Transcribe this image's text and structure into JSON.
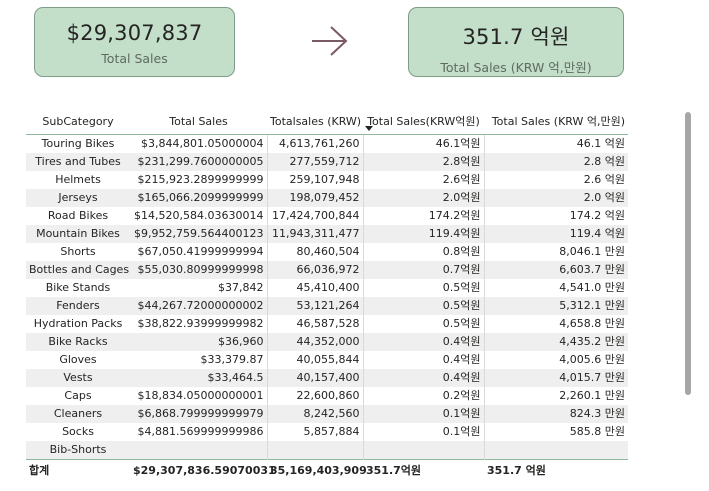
{
  "cards": {
    "total_sales": {
      "value": "$29,307,837",
      "label": "Total Sales"
    },
    "krw_sales": {
      "value": "351.7 억원",
      "label": "Total Sales (KRW 억,만원)"
    }
  },
  "table": {
    "headers": [
      "SubCategory",
      "Total Sales",
      "Totalsales (KRW)",
      "Total Sales(KRW억원)",
      "Total Sales (KRW 억,만원)"
    ],
    "rows": [
      [
        "Touring Bikes",
        "$3,844,801.05000004",
        "4,613,761,260",
        "46.1억원",
        "46.1 억원"
      ],
      [
        "Tires and Tubes",
        "$231,299.7600000005",
        "277,559,712",
        "2.8억원",
        "2.8 억원"
      ],
      [
        "Helmets",
        "$215,923.2899999999",
        "259,107,948",
        "2.6억원",
        "2.6 억원"
      ],
      [
        "Jerseys",
        "$165,066.2099999999",
        "198,079,452",
        "2.0억원",
        "2.0 억원"
      ],
      [
        "Road Bikes",
        "$14,520,584.03630014",
        "17,424,700,844",
        "174.2억원",
        "174.2 억원"
      ],
      [
        "Mountain Bikes",
        "$9,952,759.564400123",
        "11,943,311,477",
        "119.4억원",
        "119.4 억원"
      ],
      [
        "Shorts",
        "$67,050.41999999994",
        "80,460,504",
        "0.8억원",
        "8,046.1 만원"
      ],
      [
        "Bottles and Cages",
        "$55,030.80999999998",
        "66,036,972",
        "0.7억원",
        "6,603.7 만원"
      ],
      [
        "Bike Stands",
        "$37,842",
        "45,410,400",
        "0.5억원",
        "4,541.0 만원"
      ],
      [
        "Fenders",
        "$44,267.72000000002",
        "53,121,264",
        "0.5억원",
        "5,312.1 만원"
      ],
      [
        "Hydration Packs",
        "$38,822.93999999982",
        "46,587,528",
        "0.5억원",
        "4,658.8 만원"
      ],
      [
        "Bike Racks",
        "$36,960",
        "44,352,000",
        "0.4억원",
        "4,435.2 만원"
      ],
      [
        "Gloves",
        "$33,379.87",
        "40,055,844",
        "0.4억원",
        "4,005.6 만원"
      ],
      [
        "Vests",
        "$33,464.5",
        "40,157,400",
        "0.4억원",
        "4,015.7 만원"
      ],
      [
        "Caps",
        "$18,834.05000000001",
        "22,600,860",
        "0.2억원",
        "2,260.1 만원"
      ],
      [
        "Cleaners",
        "$6,868.799999999979",
        "8,242,560",
        "0.1억원",
        "824.3 만원"
      ],
      [
        "Socks",
        "$4,881.569999999986",
        "5,857,884",
        "0.1억원",
        "585.8 만원"
      ],
      [
        "Bib-Shorts",
        "",
        "",
        "",
        ""
      ]
    ],
    "totals": [
      "합계",
      "$29,307,836.59070031",
      "35,169,403,909",
      "351.7억원",
      "351.7 억원"
    ]
  }
}
